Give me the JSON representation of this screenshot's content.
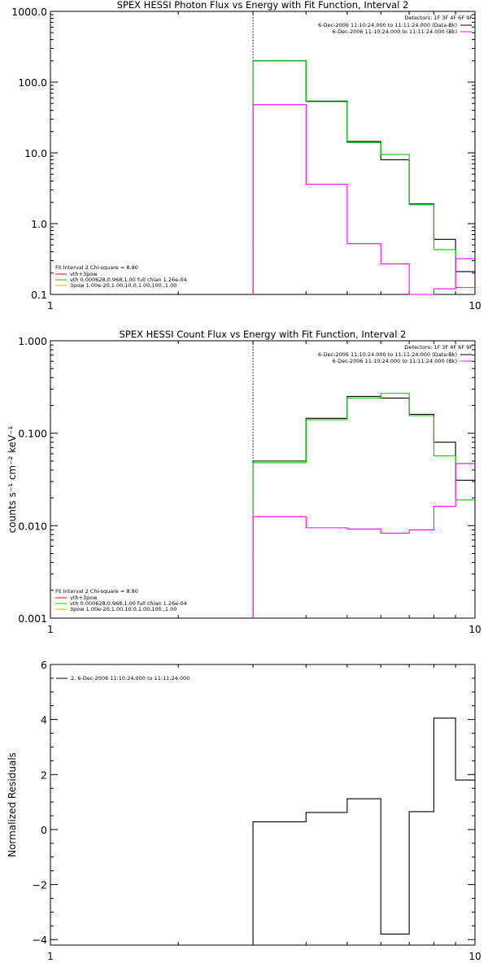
{
  "colors": {
    "black": "#000000",
    "magenta": "#ff00ff",
    "green": "#00cc00",
    "red": "#ff0000",
    "orange": "#ffaa00"
  },
  "chart_data": [
    {
      "type": "line",
      "step": true,
      "title": "SPEX HESSI Photon Flux vs Energy with Fit Function, Interval 2",
      "xlabel": "",
      "ylabel": "",
      "xscale": "log",
      "yscale": "log",
      "xlim": [
        1,
        10
      ],
      "ylim": [
        0.1,
        1000
      ],
      "xticks": [
        1,
        10
      ],
      "xtick_labels": [
        "1",
        "10"
      ],
      "yticks": [
        0.1,
        1,
        10,
        100,
        1000
      ],
      "ytick_labels": [
        "0.1",
        "1.0",
        "10.0",
        "100.0",
        "1000.0"
      ],
      "vline": 3,
      "detectors_text": "Detectors: 1F 3F 4F 6F 9F",
      "legend_top": [
        {
          "text": "6-Dec-2006 11:10:24.000 to 11:11:24.000 (Data-Bk)",
          "color": "black"
        },
        {
          "text": "6-Dec-2006 11:10:24.000 to 11:11:24.000 (Bk)",
          "color": "magenta"
        }
      ],
      "fit_title": "Fit Interval 2   Chi-square = 8.80",
      "legend_bottom": [
        {
          "text": "vth+3pow",
          "color": "red"
        },
        {
          "text": "vth 0.000628,0.968,1.00  full chian 1.26e-04",
          "color": "green"
        },
        {
          "text": "3pow 1.00e-20,1.00,10.0,1.00,100.,1.00",
          "color": "orange"
        }
      ],
      "edges": [
        3,
        4,
        5,
        6,
        7,
        8,
        9,
        10
      ],
      "series": [
        {
          "name": "Data-Bk",
          "color": "black",
          "values": [
            200,
            54,
            14.5,
            8,
            1.9,
            0.6,
            0.21
          ]
        },
        {
          "name": "vth 0.000628,0.968,1.00",
          "color": "green",
          "values": [
            200,
            53,
            14,
            9.5,
            1.85,
            0.43,
            0.125
          ]
        },
        {
          "name": "Bk",
          "color": "magenta",
          "values": [
            48,
            3.6,
            0.52,
            0.27,
            0.1,
            0.12,
            0.32
          ]
        }
      ]
    },
    {
      "type": "line",
      "step": true,
      "title": "SPEX HESSI Count Flux vs Energy with Fit Function, Interval 2",
      "xlabel": "",
      "ylabel": "counts s⁻¹ cm⁻² keV⁻¹",
      "xscale": "log",
      "yscale": "log",
      "xlim": [
        1,
        10
      ],
      "ylim": [
        0.001,
        1
      ],
      "xticks": [
        1,
        10
      ],
      "xtick_labels": [
        "1",
        "10"
      ],
      "yticks": [
        0.001,
        0.01,
        0.1,
        1
      ],
      "ytick_labels": [
        "0.001",
        "0.010",
        "0.100",
        "1.000"
      ],
      "vline": 3,
      "detectors_text": "Detectors: 1F 3F 4F 6F 9F",
      "legend_top": [
        {
          "text": "6-Dec-2006 11:10:24.000 to 11:11:24.000 (Data-Bk)",
          "color": "black"
        },
        {
          "text": "6-Dec-2006 11:10:24.000 to 11:11:24.000 (Bk)",
          "color": "magenta"
        }
      ],
      "fit_title": "Fit Interval 2   Chi-square = 8.80",
      "legend_bottom": [
        {
          "text": "vth+3pow",
          "color": "red"
        },
        {
          "text": "vth 0.000628,0.968,1.00  full chian 1.26e-04",
          "color": "green"
        },
        {
          "text": "3pow 1.00e-20,1.00,10.0,1.00,100.,1.00",
          "color": "orange"
        }
      ],
      "edges": [
        3,
        4,
        5,
        6,
        7,
        8,
        9,
        10
      ],
      "series": [
        {
          "name": "Data-Bk",
          "color": "black",
          "values": [
            0.05,
            0.145,
            0.25,
            0.24,
            0.16,
            0.08,
            0.031
          ]
        },
        {
          "name": "vth 0.000628,0.968,1.00",
          "color": "green",
          "values": [
            0.048,
            0.14,
            0.24,
            0.27,
            0.155,
            0.057,
            0.019
          ]
        },
        {
          "name": "Bk",
          "color": "magenta",
          "values": [
            0.0125,
            0.0095,
            0.0092,
            0.0083,
            0.009,
            0.0162,
            0.047
          ]
        }
      ]
    },
    {
      "type": "line",
      "step": true,
      "title": "",
      "xlabel": "",
      "ylabel": "Normalized Residuals",
      "xscale": "log",
      "yscale": "linear",
      "xlim": [
        1,
        10
      ],
      "ylim": [
        -4.2,
        6
      ],
      "xticks": [
        1,
        10
      ],
      "xtick_labels": [
        "1",
        "10"
      ],
      "yticks": [
        -4,
        -2,
        0,
        2,
        4,
        6
      ],
      "ytick_labels": [
        "−4",
        "−2",
        "0",
        "2",
        "4",
        "6"
      ],
      "legend": [
        {
          "text": "2,  6-Dec-2006 11:10:24.000 to 11:11:24.000",
          "color": "black"
        }
      ],
      "edges": [
        3,
        4,
        5,
        6,
        7,
        8,
        9,
        10
      ],
      "series": [
        {
          "name": "2,  6-Dec-2006 11:10:24.000 to 11:11:24.000",
          "color": "black",
          "values": [
            0.28,
            0.62,
            1.12,
            -3.8,
            0.65,
            4.05,
            1.8
          ]
        }
      ]
    }
  ]
}
